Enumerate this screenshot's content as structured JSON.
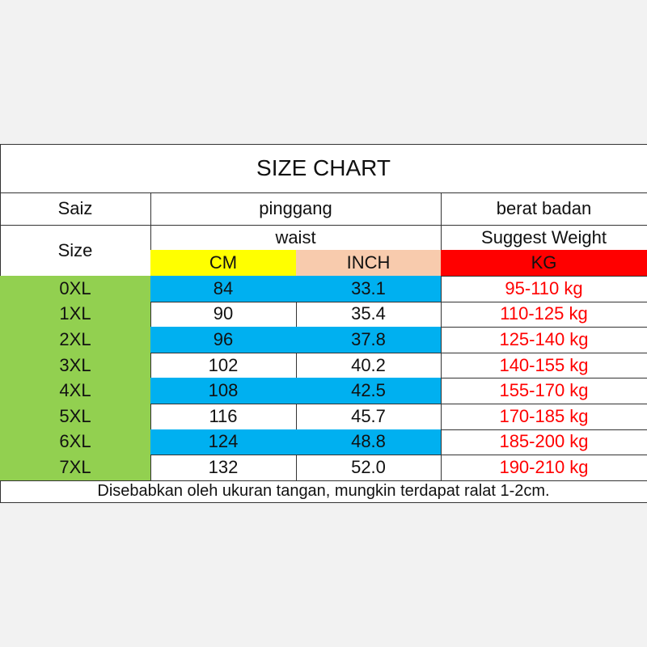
{
  "title": "SIZE CHART",
  "header": {
    "size_label": "Saiz",
    "size_label_en": "Size",
    "waist_label": "pinggang",
    "waist_label_en": "waist",
    "weight_label": "berat badan",
    "weight_label_en": "Suggest Weight",
    "units": [
      "CM",
      "INCH",
      "KG"
    ]
  },
  "table": {
    "rows": [
      [
        "0XL",
        "84",
        "33.1",
        "95-110 kg"
      ],
      [
        "1XL",
        "90",
        "35.4",
        "110-125 kg"
      ],
      [
        "2XL",
        "96",
        "37.8",
        "125-140 kg"
      ],
      [
        "3XL",
        "102",
        "40.2",
        "140-155 kg"
      ],
      [
        "4XL",
        "108",
        "42.5",
        "155-170 kg"
      ],
      [
        "5XL",
        "116",
        "45.7",
        "170-185 kg"
      ],
      [
        "6XL",
        "124",
        "48.8",
        "185-200 kg"
      ],
      [
        "7XL",
        "132",
        "52.0",
        "190-210 kg"
      ]
    ]
  },
  "footer": "Disebabkan oleh ukuran tangan, mungkin terdapat ralat 1-2cm."
}
